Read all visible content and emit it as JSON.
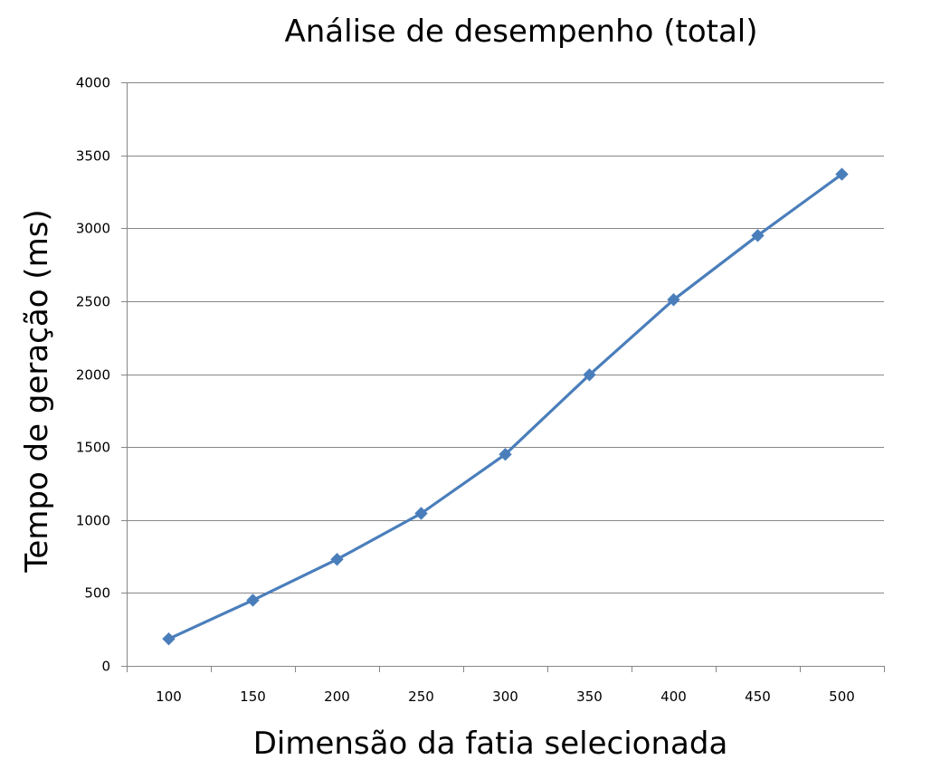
{
  "chart_data": {
    "type": "line",
    "title": "Análise de desempenho (total)",
    "xlabel": "Dimensão da fatia selecionada",
    "ylabel": "Tempo de geração (ms)",
    "categories": [
      "100",
      "150",
      "200",
      "250",
      "300",
      "350",
      "400",
      "450",
      "500"
    ],
    "series": [
      {
        "values": [
          185,
          450,
          730,
          1045,
          1450,
          1995,
          2510,
          2950,
          3370
        ],
        "color": "#4a7ebb",
        "marker": "diamond"
      }
    ],
    "ylim": [
      0,
      4000
    ],
    "yticks": [
      0,
      500,
      1000,
      1500,
      2000,
      2500,
      3000,
      3500,
      4000
    ],
    "grid": "horizontal",
    "legend": "none"
  }
}
